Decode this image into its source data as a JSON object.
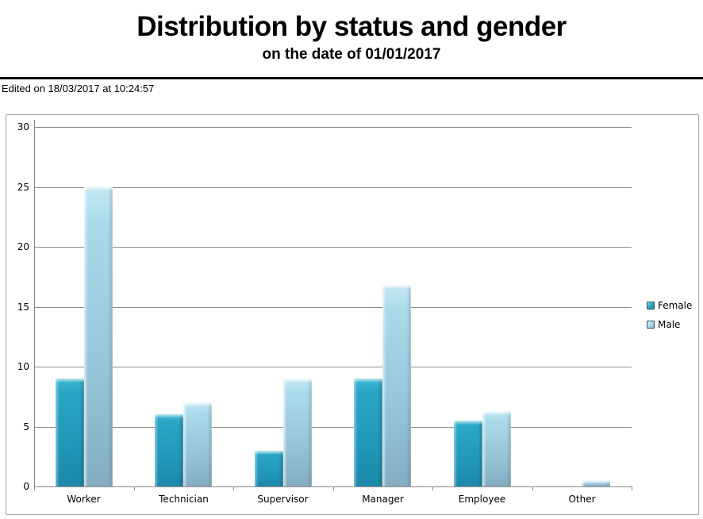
{
  "meta": {
    "edited_note": "Edited on 18/03/2017 at 10:24:57"
  },
  "chart_data": {
    "type": "bar",
    "title": "Distribution by status and gender",
    "subtitle": "on the date of 01/01/2017",
    "categories": [
      "Worker",
      "Technician",
      "Supervisor",
      "Manager",
      "Employee",
      "Other"
    ],
    "series": [
      {
        "name": "Female",
        "color": "#2196B8",
        "values": [
          9,
          6,
          3,
          9,
          5.5,
          0
        ]
      },
      {
        "name": "Male",
        "color": "#A9D8E8",
        "values": [
          25,
          7,
          9,
          16.8,
          6.3,
          0.5
        ]
      }
    ],
    "xlabel": "",
    "ylabel": "",
    "ylim": [
      0,
      30
    ],
    "yticks": [
      0,
      5,
      10,
      15,
      20,
      25,
      30
    ],
    "grid": true,
    "legend_position": "right",
    "axis_color": "#8C8C8C",
    "border_color": "#A6A6A6",
    "text_color": "#000000"
  }
}
